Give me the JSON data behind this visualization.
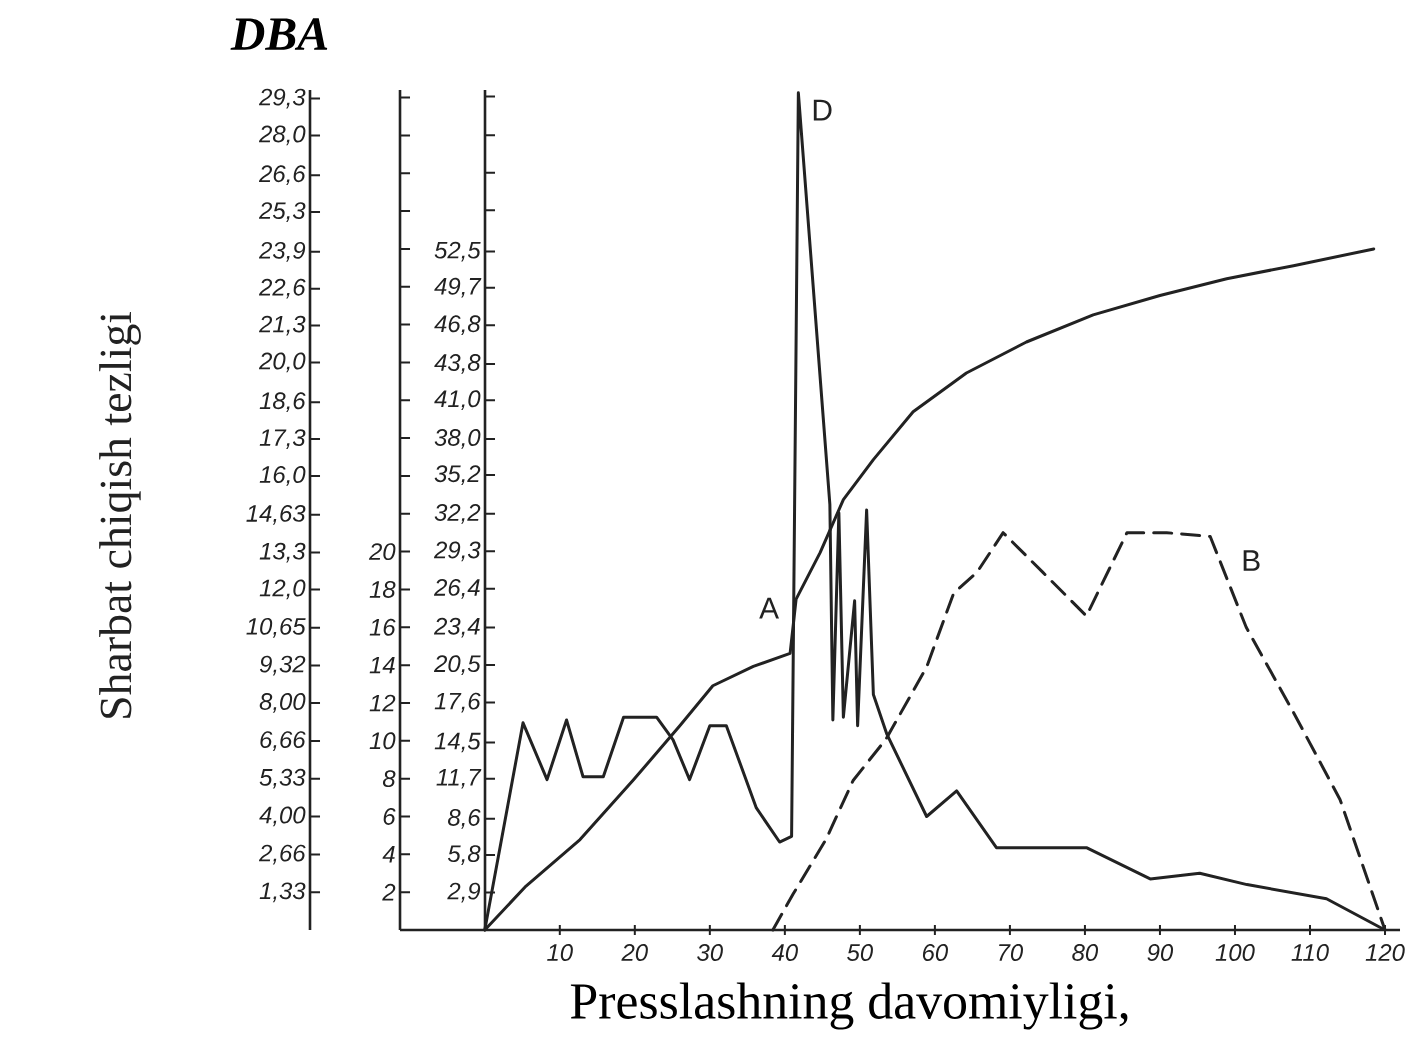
{
  "chart_data": {
    "type": "line",
    "title": "DBA",
    "xlabel": "Presslashning davomiyligi,",
    "y3label": "Sharbat chiqish tezligi",
    "xlim": [
      -11.3,
      122
    ],
    "xticks": [
      10,
      20,
      30,
      40,
      50,
      60,
      70,
      80,
      90,
      100,
      110,
      120
    ],
    "ylim": [
      0,
      65.0
    ],
    "yticks": [
      {
        "value": 2.9,
        "label": "2,9"
      },
      {
        "value": 5.8,
        "label": "5,8"
      },
      {
        "value": 8.6,
        "label": "8,6"
      },
      {
        "value": 11.7,
        "label": "11,7"
      },
      {
        "value": 14.5,
        "label": "14,5"
      },
      {
        "value": 17.6,
        "label": "17,6"
      },
      {
        "value": 20.5,
        "label": "20,5"
      },
      {
        "value": 23.4,
        "label": "23,4"
      },
      {
        "value": 26.4,
        "label": "26,4"
      },
      {
        "value": 29.3,
        "label": "29,3"
      },
      {
        "value": 32.2,
        "label": "32,2"
      },
      {
        "value": 35.2,
        "label": "35,2"
      },
      {
        "value": 38.0,
        "label": "38,0"
      },
      {
        "value": 41.0,
        "label": "41,0"
      },
      {
        "value": 43.8,
        "label": "43,8"
      },
      {
        "value": 46.8,
        "label": "46,8"
      },
      {
        "value": 49.7,
        "label": "49,7"
      },
      {
        "value": 52.5,
        "label": "52,5"
      },
      {
        "value": 55.7,
        "label": null
      },
      {
        "value": 58.6,
        "label": null
      },
      {
        "value": 61.5,
        "label": null
      },
      {
        "value": 64.5,
        "label": null
      }
    ],
    "y2lim": [
      0,
      44.4
    ],
    "y2ticks": [
      2,
      4,
      6,
      8,
      10,
      12,
      14,
      16,
      18,
      20,
      {
        "value": 22,
        "label": null
      },
      {
        "value": 24,
        "label": null
      },
      {
        "value": 26,
        "label": null
      },
      {
        "value": 28,
        "label": null
      },
      {
        "value": 30,
        "label": null
      },
      {
        "value": 32,
        "label": null
      },
      {
        "value": 34,
        "label": null
      },
      {
        "value": 36,
        "label": null
      },
      {
        "value": 38,
        "label": null
      },
      {
        "value": 40,
        "label": null
      },
      {
        "value": 42,
        "label": null
      },
      {
        "value": 44,
        "label": null
      }
    ],
    "y3lim": [
      0,
      29.6
    ],
    "y3ticks": [
      {
        "value": 1.33,
        "label": "1,33"
      },
      {
        "value": 2.66,
        "label": "2,66"
      },
      {
        "value": 4.0,
        "label": "4,00"
      },
      {
        "value": 5.33,
        "label": "5,33"
      },
      {
        "value": 6.66,
        "label": "6,66"
      },
      {
        "value": 8.0,
        "label": "8,00"
      },
      {
        "value": 9.32,
        "label": "9,32"
      },
      {
        "value": 10.65,
        "label": "10,65"
      },
      {
        "value": 12.0,
        "label": "12,0"
      },
      {
        "value": 13.3,
        "label": "13,3"
      },
      {
        "value": 14.63,
        "label": "14,63"
      },
      {
        "value": 16.0,
        "label": "16,0"
      },
      {
        "value": 17.3,
        "label": "17,3"
      },
      {
        "value": 18.6,
        "label": "18,6"
      },
      {
        "value": 20.0,
        "label": "20,0"
      },
      {
        "value": 21.3,
        "label": "21,3"
      },
      {
        "value": 22.6,
        "label": "22,6"
      },
      {
        "value": 23.9,
        "label": "23,9"
      },
      {
        "value": 25.3,
        "label": "25,3"
      },
      {
        "value": 26.6,
        "label": "26,6"
      },
      {
        "value": 28.0,
        "label": "28,0"
      },
      {
        "value": 29.3,
        "label": "29,3"
      }
    ],
    "marker": "none",
    "line_style": "solid",
    "series": [
      {
        "name": "D",
        "color": "#222222",
        "axis": "y3",
        "x": [
          0,
          5.1,
          8.3,
          10.9,
          13.1,
          15.8,
          18.5,
          22.9,
          25.1,
          27.3,
          30.0,
          32.2,
          36.2,
          39.3,
          40.9,
          41.8,
          46.0,
          46.4,
          47.2,
          47.8,
          49.3,
          49.7,
          50.9,
          51.8,
          53.6,
          58.9,
          62.9,
          68.2,
          74.0,
          80.2,
          88.7,
          95.3,
          101.6,
          112.2,
          120
        ],
        "values": [
          0,
          7.3,
          5.3,
          7.4,
          5.4,
          5.4,
          7.5,
          7.5,
          6.7,
          5.3,
          7.2,
          7.2,
          4.3,
          3.1,
          3.3,
          29.5,
          15.0,
          7.4,
          14.7,
          7.5,
          11.6,
          7.2,
          14.8,
          8.3,
          6.9,
          4.0,
          4.9,
          2.9,
          2.9,
          2.9,
          1.8,
          2.0,
          1.6,
          1.1,
          0
        ]
      },
      {
        "name": "B",
        "color": "#222222",
        "axis": "y2",
        "line_style": "dashed",
        "x": [
          38.4,
          41.1,
          45.5,
          49.1,
          53.5,
          58.9,
          62.5,
          65.6,
          69.1,
          74.4,
          80.2,
          85.6,
          90.9,
          96.7,
          101.5,
          107.8,
          114.0,
          120
        ],
        "values": [
          0,
          1.9,
          4.8,
          7.9,
          10.1,
          13.9,
          17.8,
          18.9,
          21.0,
          18.9,
          16.6,
          21.0,
          21.0,
          20.8,
          16.0,
          11.5,
          6.9,
          0
        ]
      },
      {
        "name": "A",
        "color": "#222222",
        "axis": "y",
        "x": [
          0,
          5.5,
          12.7,
          19.8,
          26.0,
          30.4,
          35.8,
          40.7,
          41.5,
          44.7,
          47.8,
          51.8,
          57.1,
          64.2,
          72.2,
          81.1,
          90.0,
          98.9,
          107.8,
          118.5
        ],
        "values": [
          0,
          3.4,
          7.0,
          11.6,
          15.8,
          18.9,
          20.4,
          21.4,
          25.6,
          29.2,
          33.3,
          36.4,
          40.1,
          43.1,
          45.5,
          47.6,
          49.1,
          50.4,
          51.4,
          52.7
        ]
      }
    ]
  }
}
